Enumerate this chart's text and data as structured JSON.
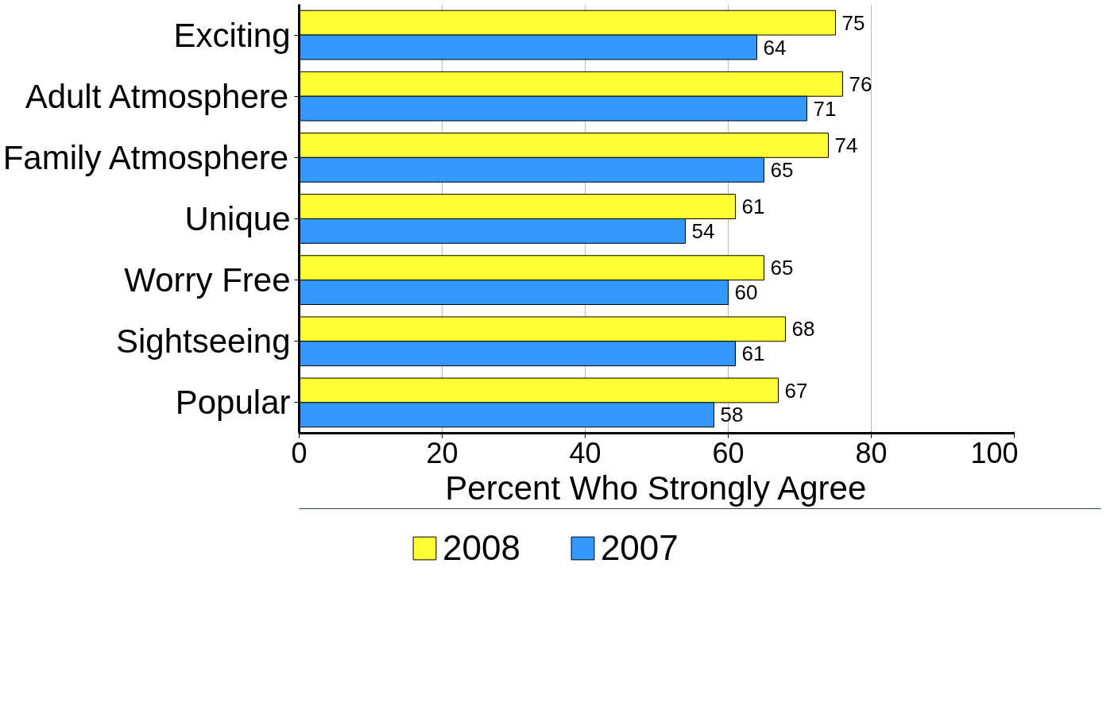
{
  "chart_data": {
    "type": "bar",
    "orientation": "horizontal",
    "categories": [
      "Exciting",
      "Adult Atmosphere",
      "Family Atmosphere",
      "Unique",
      "Worry Free",
      "Sightseeing",
      "Popular"
    ],
    "series": [
      {
        "name": "2008",
        "color": "#ffff33",
        "values": [
          75,
          76,
          74,
          61,
          65,
          68,
          67
        ]
      },
      {
        "name": "2007",
        "color": "#3399ff",
        "values": [
          64,
          71,
          65,
          54,
          60,
          61,
          58
        ]
      }
    ],
    "xlim": [
      0,
      100
    ],
    "xticks": [
      0,
      20,
      40,
      60,
      80,
      100
    ],
    "xlabel": "Percent Who Strongly Agree",
    "grid": "x",
    "legend": "bottom",
    "data_labels": true
  }
}
